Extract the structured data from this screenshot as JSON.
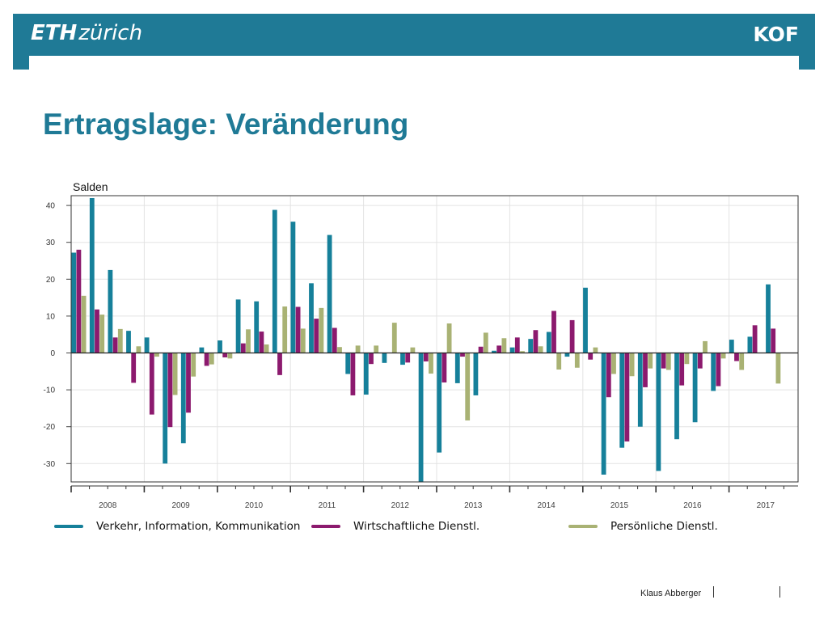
{
  "header": {
    "logo_eth_bold": "ETH",
    "logo_eth_light": "zürich",
    "logo_kof": "KOF"
  },
  "title": "Ertragslage: Veränderung",
  "footer": {
    "author": "Klaus Abberger"
  },
  "colors": {
    "header": "#1f7a96",
    "series": [
      "#16809a",
      "#8c1a6e",
      "#a9b274"
    ]
  },
  "chart_data": {
    "type": "bar",
    "ylabel": "Salden",
    "xlabel": "",
    "ylim": [
      -35,
      42
    ],
    "yticks": [
      40,
      30,
      20,
      10,
      0,
      -10,
      -20,
      -30
    ],
    "year_labels": [
      "2008",
      "2009",
      "2010",
      "2011",
      "2012",
      "2013",
      "2014",
      "2015",
      "2016",
      "2017"
    ],
    "grid": true,
    "legend_position": "bottom",
    "categories": [
      "2008Q1",
      "2008Q2",
      "2008Q3",
      "2008Q4",
      "2009Q1",
      "2009Q2",
      "2009Q3",
      "2009Q4",
      "2010Q1",
      "2010Q2",
      "2010Q3",
      "2010Q4",
      "2011Q1",
      "2011Q2",
      "2011Q3",
      "2011Q4",
      "2012Q1",
      "2012Q2",
      "2012Q3",
      "2012Q4",
      "2013Q1",
      "2013Q2",
      "2013Q3",
      "2013Q4",
      "2014Q1",
      "2014Q2",
      "2014Q3",
      "2014Q4",
      "2015Q1",
      "2015Q2",
      "2015Q3",
      "2015Q4",
      "2016Q1",
      "2016Q2",
      "2016Q3",
      "2016Q4",
      "2017Q1",
      "2017Q2",
      "2017Q3",
      "2017Q4"
    ],
    "series": [
      {
        "name": "Verkehr, Information, Kommunikation",
        "values": [
          27.2,
          42,
          22.5,
          6,
          4.2,
          -30,
          -24.5,
          1.5,
          3.4,
          14.5,
          14,
          38.8,
          35.6,
          18.9,
          32,
          -5.7,
          -11.3,
          -2.7,
          -3.2,
          -35,
          -27,
          -8.2,
          -11.5,
          0.6,
          1.5,
          3.8,
          5.7,
          -1,
          17.7,
          -33,
          -25.7,
          -20,
          -32,
          -23.4,
          -18.8,
          -10.3,
          3.6,
          4.4,
          18.6,
          null
        ]
      },
      {
        "name": "Wirtschaftliche Dienstl.",
        "values": [
          28,
          11.8,
          4.2,
          -8.1,
          -16.7,
          -20.1,
          -16.2,
          -3.5,
          -1.2,
          2.6,
          5.8,
          -6,
          12.5,
          9.3,
          6.8,
          -11.5,
          -3,
          null,
          -2.6,
          -2.3,
          -8,
          -1,
          1.7,
          2,
          4.2,
          6.2,
          11.4,
          8.9,
          -1.8,
          -12,
          -24,
          -9.3,
          -4.2,
          -8.8,
          -4.2,
          -9,
          -2.2,
          7.5,
          6.6,
          null
        ]
      },
      {
        "name": "Persönliche Dienstl.",
        "values": [
          15.5,
          10.4,
          6.5,
          1.8,
          -1,
          -11.4,
          -6.4,
          -3.1,
          -1.5,
          6.4,
          2.3,
          12.6,
          6.6,
          12.2,
          1.6,
          2,
          2,
          8.2,
          1.5,
          -5.6,
          8,
          -18.3,
          5.5,
          4,
          0.5,
          1.8,
          -4.5,
          -4,
          1.5,
          -5.7,
          -6.3,
          -4.2,
          -4.6,
          -3,
          3.2,
          -1.5,
          -4.6,
          null,
          -8.3,
          null
        ]
      }
    ]
  }
}
